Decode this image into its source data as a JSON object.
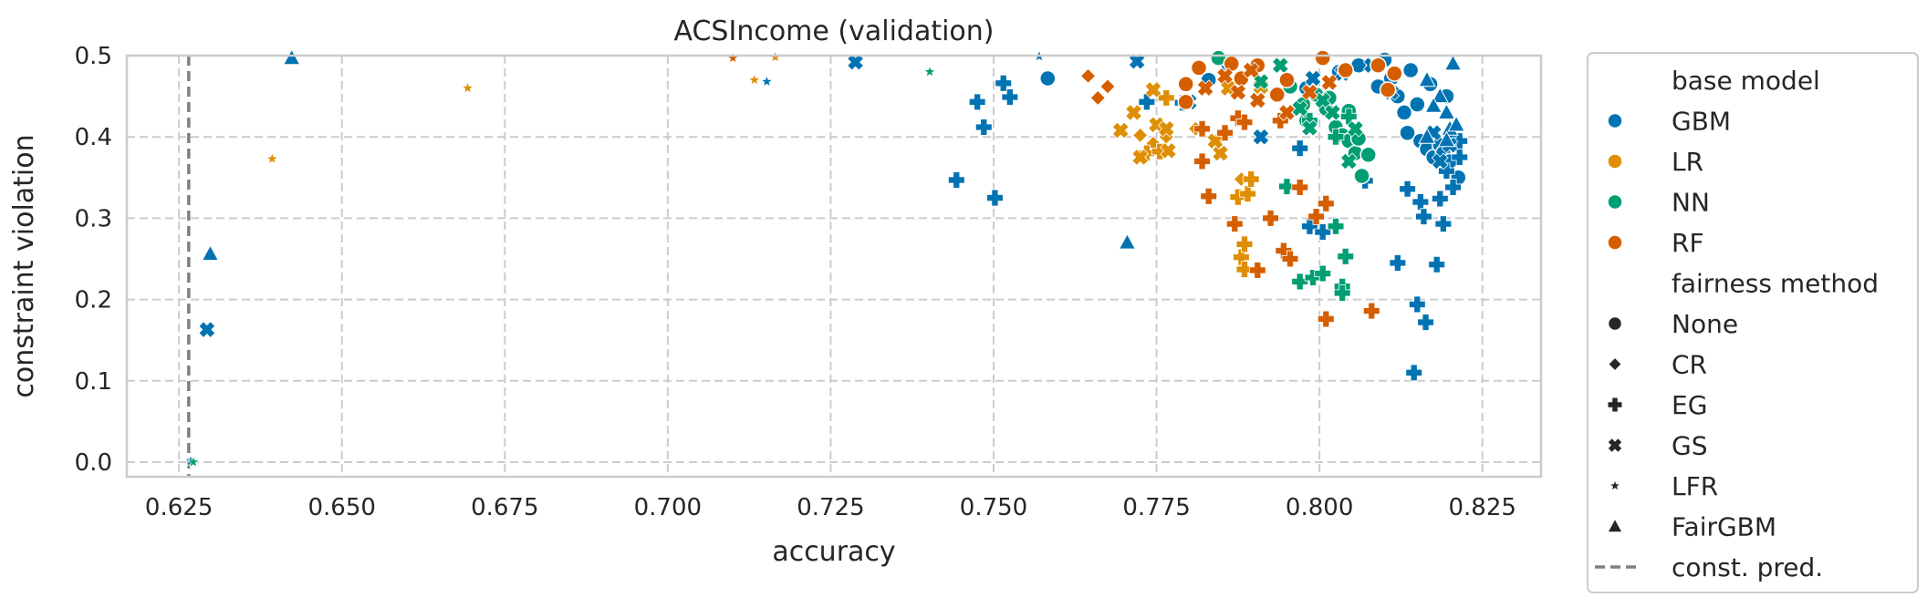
{
  "chart_data": {
    "type": "scatter",
    "title": "ACSIncome (validation)",
    "xlabel": "accuracy",
    "ylabel": "constraint violation",
    "xlim": [
      0.617,
      0.834
    ],
    "ylim": [
      -0.018,
      0.5
    ],
    "x_ticks": [
      "0.625",
      "0.650",
      "0.675",
      "0.700",
      "0.725",
      "0.750",
      "0.775",
      "0.800",
      "0.825"
    ],
    "y_ticks": [
      "0.0",
      "0.1",
      "0.2",
      "0.3",
      "0.4",
      "0.5"
    ],
    "grid": true,
    "legend_position": "outside-right",
    "reference_line": {
      "name": "const. pred.",
      "x": 0.6265,
      "color": "#808080",
      "style": "dashed"
    },
    "legend": {
      "hue_title": "base model",
      "hue": [
        {
          "name": "GBM",
          "color": "#0173b2"
        },
        {
          "name": "LR",
          "color": "#de8f05"
        },
        {
          "name": "NN",
          "color": "#029e73"
        },
        {
          "name": "RF",
          "color": "#d55e00"
        }
      ],
      "style_title": "fairness method",
      "styles": [
        {
          "name": "None",
          "marker": "circle"
        },
        {
          "name": "CR",
          "marker": "diamond"
        },
        {
          "name": "EG",
          "marker": "plus"
        },
        {
          "name": "GS",
          "marker": "x"
        },
        {
          "name": "LFR",
          "marker": "star"
        },
        {
          "name": "FairGBM",
          "marker": "triangle"
        }
      ],
      "line_label": "const. pred."
    },
    "series": [
      {
        "model": "GBM",
        "method": "None",
        "points": [
          [
            0.7583,
            0.472
          ],
          [
            0.783,
            0.47
          ],
          [
            0.786,
            0.49
          ],
          [
            0.798,
            0.46
          ],
          [
            0.803,
            0.48
          ],
          [
            0.806,
            0.488
          ],
          [
            0.809,
            0.462
          ],
          [
            0.811,
            0.472
          ],
          [
            0.812,
            0.45
          ],
          [
            0.813,
            0.43
          ],
          [
            0.8135,
            0.405
          ],
          [
            0.815,
            0.44
          ],
          [
            0.8155,
            0.395
          ],
          [
            0.8165,
            0.385
          ],
          [
            0.8175,
            0.375
          ],
          [
            0.8185,
            0.39
          ],
          [
            0.819,
            0.38
          ],
          [
            0.82,
            0.37
          ],
          [
            0.8205,
            0.395
          ],
          [
            0.8213,
            0.35
          ],
          [
            0.8195,
            0.45
          ],
          [
            0.817,
            0.465
          ],
          [
            0.814,
            0.482
          ],
          [
            0.81,
            0.495
          ]
        ]
      },
      {
        "model": "GBM",
        "method": "EG",
        "points": [
          [
            0.7443,
            0.347
          ],
          [
            0.7475,
            0.443
          ],
          [
            0.7485,
            0.412
          ],
          [
            0.7502,
            0.325
          ],
          [
            0.7515,
            0.466
          ],
          [
            0.7525,
            0.449
          ],
          [
            0.7735,
            0.443
          ],
          [
            0.779,
            0.442
          ],
          [
            0.797,
            0.386
          ],
          [
            0.7985,
            0.29
          ],
          [
            0.8005,
            0.283
          ],
          [
            0.807,
            0.346
          ],
          [
            0.812,
            0.245
          ],
          [
            0.8135,
            0.336
          ],
          [
            0.8145,
            0.11
          ],
          [
            0.815,
            0.194
          ],
          [
            0.8155,
            0.32
          ],
          [
            0.816,
            0.302
          ],
          [
            0.8163,
            0.172
          ],
          [
            0.818,
            0.243
          ],
          [
            0.8185,
            0.324
          ],
          [
            0.819,
            0.293
          ],
          [
            0.8195,
            0.358
          ],
          [
            0.8205,
            0.338
          ],
          [
            0.8215,
            0.375
          ],
          [
            0.8215,
            0.395
          ]
        ]
      },
      {
        "model": "GBM",
        "method": "GS",
        "points": [
          [
            0.6293,
            0.163
          ],
          [
            0.7288,
            0.492
          ],
          [
            0.772,
            0.493
          ],
          [
            0.78,
            0.443
          ],
          [
            0.791,
            0.4
          ],
          [
            0.799,
            0.472
          ],
          [
            0.8035,
            0.478
          ],
          [
            0.808,
            0.488
          ],
          [
            0.811,
            0.455
          ],
          [
            0.8175,
            0.405
          ],
          [
            0.8185,
            0.37
          ],
          [
            0.82,
            0.39
          ]
        ]
      },
      {
        "model": "GBM",
        "method": "LFR",
        "points": [
          [
            0.7152,
            0.468
          ],
          [
            0.757,
            0.499
          ],
          [
            0.6268,
            0.001
          ]
        ]
      },
      {
        "model": "GBM",
        "method": "FairGBM",
        "points": [
          [
            0.6298,
            0.256
          ],
          [
            0.6423,
            0.497
          ],
          [
            0.7705,
            0.27
          ],
          [
            0.8165,
            0.47
          ],
          [
            0.8185,
            0.45
          ],
          [
            0.8195,
            0.43
          ],
          [
            0.82,
            0.41
          ],
          [
            0.8205,
            0.49
          ],
          [
            0.8175,
            0.438
          ],
          [
            0.8195,
            0.396
          ],
          [
            0.821,
            0.415
          ],
          [
            0.8165,
            0.4
          ]
        ]
      },
      {
        "model": "LR",
        "method": "CR",
        "points": [
          [
            0.7725,
            0.402
          ],
          [
            0.7745,
            0.392
          ],
          [
            0.7765,
            0.4
          ],
          [
            0.781,
            0.41
          ],
          [
            0.7845,
            0.398
          ],
          [
            0.788,
            0.348
          ]
        ]
      },
      {
        "model": "LR",
        "method": "EG",
        "points": [
          [
            0.7765,
            0.448
          ],
          [
            0.7735,
            0.38
          ],
          [
            0.7755,
            0.382
          ],
          [
            0.7875,
            0.326
          ],
          [
            0.788,
            0.252
          ],
          [
            0.7885,
            0.237
          ],
          [
            0.789,
            0.33
          ],
          [
            0.7895,
            0.348
          ],
          [
            0.7885,
            0.268
          ]
        ]
      },
      {
        "model": "LR",
        "method": "GS",
        "points": [
          [
            0.7695,
            0.408
          ],
          [
            0.7715,
            0.43
          ],
          [
            0.7725,
            0.375
          ],
          [
            0.7745,
            0.458
          ],
          [
            0.775,
            0.415
          ],
          [
            0.7765,
            0.41
          ],
          [
            0.7768,
            0.383
          ],
          [
            0.7848,
            0.38
          ],
          [
            0.786,
            0.46
          ],
          [
            0.791,
            0.462
          ],
          [
            0.784,
            0.395
          ]
        ]
      },
      {
        "model": "LR",
        "method": "LFR",
        "points": [
          [
            0.6393,
            0.373
          ],
          [
            0.6693,
            0.46
          ],
          [
            0.7133,
            0.47
          ],
          [
            0.7165,
            0.498
          ]
        ]
      },
      {
        "model": "NN",
        "method": "None",
        "points": [
          [
            0.7845,
            0.497
          ],
          [
            0.7955,
            0.462
          ],
          [
            0.798,
            0.42
          ],
          [
            0.7995,
            0.452
          ],
          [
            0.801,
            0.435
          ],
          [
            0.8025,
            0.412
          ],
          [
            0.8035,
            0.402
          ],
          [
            0.8045,
            0.395
          ],
          [
            0.8055,
            0.38
          ],
          [
            0.806,
            0.398
          ],
          [
            0.8065,
            0.352
          ],
          [
            0.8075,
            0.378
          ],
          [
            0.7975,
            0.44
          ],
          [
            0.8015,
            0.448
          ],
          [
            0.8045,
            0.432
          ]
        ]
      },
      {
        "model": "NN",
        "method": "EG",
        "points": [
          [
            0.795,
            0.339
          ],
          [
            0.797,
            0.222
          ],
          [
            0.799,
            0.227
          ],
          [
            0.8005,
            0.232
          ],
          [
            0.8025,
            0.29
          ],
          [
            0.8035,
            0.216
          ],
          [
            0.8035,
            0.208
          ],
          [
            0.804,
            0.253
          ],
          [
            0.8025,
            0.4
          ],
          [
            0.8045,
            0.425
          ],
          [
            0.7985,
            0.42
          ]
        ]
      },
      {
        "model": "NN",
        "method": "GS",
        "points": [
          [
            0.791,
            0.468
          ],
          [
            0.794,
            0.488
          ],
          [
            0.797,
            0.435
          ],
          [
            0.7985,
            0.411
          ],
          [
            0.8005,
            0.445
          ],
          [
            0.802,
            0.43
          ],
          [
            0.8045,
            0.37
          ],
          [
            0.8055,
            0.41
          ]
        ]
      },
      {
        "model": "NN",
        "method": "LFR",
        "points": [
          [
            0.7402,
            0.48
          ],
          [
            0.6272,
            0.0
          ]
        ]
      },
      {
        "model": "RF",
        "method": "None",
        "points": [
          [
            0.7795,
            0.443
          ],
          [
            0.7795,
            0.465
          ],
          [
            0.7815,
            0.485
          ],
          [
            0.7865,
            0.49
          ],
          [
            0.788,
            0.472
          ],
          [
            0.7905,
            0.488
          ],
          [
            0.795,
            0.47
          ],
          [
            0.8005,
            0.497
          ],
          [
            0.804,
            0.482
          ],
          [
            0.809,
            0.488
          ],
          [
            0.8105,
            0.458
          ],
          [
            0.8115,
            0.478
          ],
          [
            0.7935,
            0.452
          ]
        ]
      },
      {
        "model": "RF",
        "method": "CR",
        "points": [
          [
            0.7645,
            0.475
          ],
          [
            0.766,
            0.448
          ],
          [
            0.7675,
            0.462
          ]
        ]
      },
      {
        "model": "RF",
        "method": "EG",
        "points": [
          [
            0.782,
            0.37
          ],
          [
            0.782,
            0.41
          ],
          [
            0.783,
            0.327
          ],
          [
            0.7855,
            0.405
          ],
          [
            0.787,
            0.293
          ],
          [
            0.7925,
            0.3
          ],
          [
            0.7945,
            0.26
          ],
          [
            0.7955,
            0.25
          ],
          [
            0.7905,
            0.236
          ],
          [
            0.797,
            0.338
          ],
          [
            0.7995,
            0.302
          ],
          [
            0.801,
            0.318
          ],
          [
            0.801,
            0.176
          ],
          [
            0.808,
            0.186
          ],
          [
            0.7875,
            0.423
          ],
          [
            0.7885,
            0.418
          ],
          [
            0.794,
            0.42
          ]
        ]
      },
      {
        "model": "RF",
        "method": "GS",
        "points": [
          [
            0.7825,
            0.46
          ],
          [
            0.7855,
            0.475
          ],
          [
            0.7875,
            0.455
          ],
          [
            0.7905,
            0.445
          ],
          [
            0.795,
            0.43
          ],
          [
            0.7985,
            0.455
          ],
          [
            0.8015,
            0.467
          ],
          [
            0.7895,
            0.482
          ]
        ]
      },
      {
        "model": "RF",
        "method": "LFR",
        "points": [
          [
            0.71,
            0.497
          ]
        ]
      }
    ]
  }
}
